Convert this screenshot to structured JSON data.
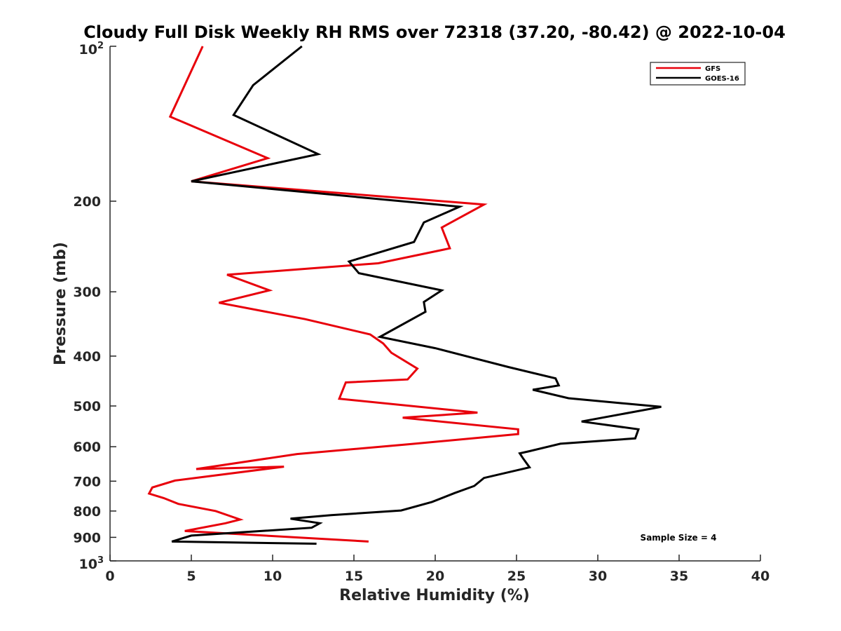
{
  "chart_data": {
    "type": "line",
    "title": "Cloudy Full Disk Weekly RH RMS over 72318 (37.20, -80.42) @ 2022-10-04",
    "xlabel": "Relative Humidity (%)",
    "ylabel": "Pressure (mb)",
    "xlim": [
      0,
      40
    ],
    "ylim": [
      100,
      1000
    ],
    "yscale": "log",
    "y_reversed": true,
    "xticks": [
      0,
      5,
      10,
      15,
      20,
      25,
      30,
      35,
      40
    ],
    "xtick_labels": [
      "0",
      "5",
      "10",
      "15",
      "20",
      "25",
      "30",
      "35",
      "40"
    ],
    "yticks": [
      200,
      300,
      400,
      500,
      600,
      700,
      800,
      900
    ],
    "ytick_labels": [
      "200",
      "300",
      "400",
      "500",
      "600",
      "700",
      "800",
      "900"
    ],
    "ytick_top": {
      "base": "10",
      "exp": "2"
    },
    "ytick_bottom": {
      "base": "10",
      "exp": "3"
    },
    "legend_position": "top-right",
    "annotation": "Sample Size = 4",
    "series": [
      {
        "name": "GFS",
        "color": "#e8000b",
        "x": [
          5.7,
          3.7,
          9.7,
          5.0,
          23.0,
          20.4,
          20.9,
          16.5,
          7.2,
          9.8,
          6.7,
          12.0,
          16.0,
          16.8,
          17.3,
          18.9,
          18.3,
          14.5,
          14.1,
          22.6,
          18.0,
          25.1,
          25.1,
          18.5,
          11.5,
          5.3,
          10.7,
          4.0,
          2.6,
          2.4,
          3.3,
          4.2,
          6.5,
          8.0,
          7.1,
          4.6,
          15.9
        ],
        "y": [
          100,
          137,
          165,
          183,
          203,
          225,
          247,
          264,
          278,
          298,
          315,
          339,
          363,
          378,
          394,
          423,
          444,
          450,
          484,
          515,
          527,
          555,
          567,
          593,
          620,
          663,
          656,
          698,
          720,
          740,
          755,
          775,
          800,
          831,
          845,
          875,
          917
        ]
      },
      {
        "name": "GOES-16",
        "color": "#000000",
        "x": [
          11.8,
          8.8,
          7.6,
          12.8,
          5.0,
          21.5,
          19.3,
          18.7,
          14.7,
          15.3,
          20.4,
          19.3,
          19.4,
          16.6,
          20.0,
          24.5,
          27.4,
          27.6,
          26.0,
          28.2,
          33.9,
          29.0,
          32.5,
          32.3,
          27.7,
          25.8,
          25.2,
          25.4,
          25.8,
          23.0,
          22.4,
          21.2,
          19.8,
          17.9,
          13.6,
          11.1,
          12.9,
          12.4,
          5.0,
          3.8,
          12.7
        ],
        "y": [
          100,
          119,
          136,
          162,
          183,
          205,
          220,
          240,
          262,
          276,
          298,
          314,
          328,
          367,
          386,
          420,
          442,
          456,
          465,
          483,
          502,
          536,
          555,
          578,
          592,
          612,
          618,
          632,
          658,
          690,
          715,
          738,
          768,
          798,
          815,
          828,
          845,
          862,
          893,
          917,
          926
        ]
      }
    ]
  }
}
